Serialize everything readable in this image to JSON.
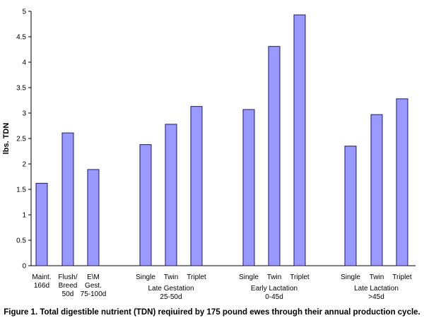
{
  "chart_data": {
    "type": "bar",
    "ylabel": "lbs. TDN",
    "xlabel": "",
    "ylim": [
      0,
      5
    ],
    "yticks": [
      "0",
      "0.5",
      "1",
      "1.5",
      "2",
      "2.5",
      "3",
      "3.5",
      "4",
      "4.5",
      "5"
    ],
    "bar_color": "#9999ff",
    "bar_stroke": "#1a1a66",
    "grid": false,
    "categories": [
      {
        "label_lines": [
          "Maint.",
          "166d"
        ],
        "value": 1.62
      },
      {
        "label_lines": [
          "Flush/",
          "Breed",
          "50d"
        ],
        "value": 2.61
      },
      {
        "label_lines": [
          "E\\M",
          "Gest.",
          "75-100d"
        ],
        "value": 1.89
      },
      {
        "label_lines": [
          "Single"
        ],
        "value": 2.38
      },
      {
        "label_lines": [
          "Twin"
        ],
        "value": 2.78
      },
      {
        "label_lines": [
          "Triplet"
        ],
        "value": 3.13
      },
      {
        "label_lines": [
          "Single"
        ],
        "value": 3.07
      },
      {
        "label_lines": [
          "Twin"
        ],
        "value": 4.31
      },
      {
        "label_lines": [
          "Triplet"
        ],
        "value": 4.93
      },
      {
        "label_lines": [
          "Single"
        ],
        "value": 2.35
      },
      {
        "label_lines": [
          "Twin"
        ],
        "value": 2.97
      },
      {
        "label_lines": [
          "Triplet"
        ],
        "value": 3.28
      }
    ],
    "groups": [
      {
        "label_lines": [
          "Late Gestation",
          "25-50d"
        ],
        "members": [
          3,
          4,
          5
        ]
      },
      {
        "label_lines": [
          "Early Lactation",
          "0-45d"
        ],
        "members": [
          6,
          7,
          8
        ]
      },
      {
        "label_lines": [
          "Late Lactation",
          ">45d"
        ],
        "members": [
          9,
          10,
          11
        ]
      }
    ]
  },
  "caption": "Figure 1.  Total digestible nutrient (TDN) reqiuired by 175 pound ewes through their annual production cycle."
}
